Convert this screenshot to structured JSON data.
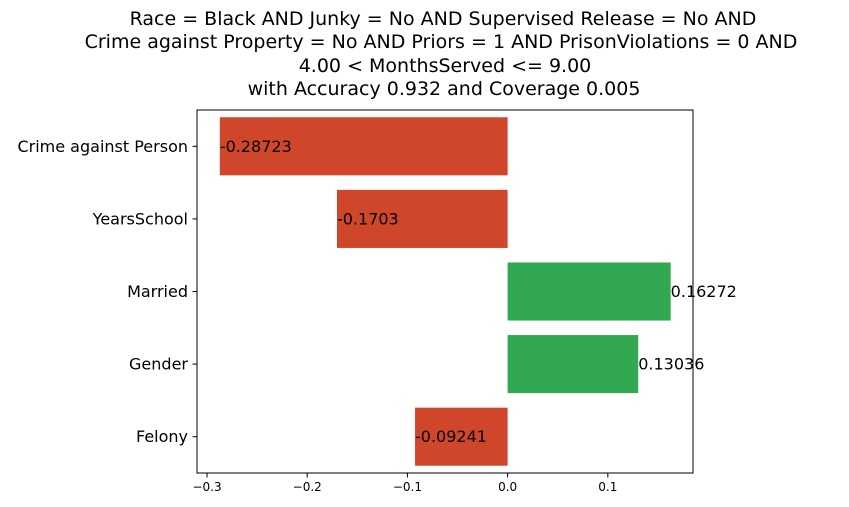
{
  "chart_data": {
    "type": "bar",
    "orientation": "horizontal",
    "title_lines": [
      "Race = Black AND Junky = No AND Supervised Release = No AND",
      "Crime against Property = No AND Priors = 1 AND PrisonViolations = 0 AND",
      "4.00 < MonthsServed <= 9.00",
      "with Accuracy 0.932 and Coverage 0.005"
    ],
    "categories": [
      "Crime against Person",
      "YearsSchool",
      "Married",
      "Gender",
      "Felony"
    ],
    "values": [
      -0.28723,
      -0.1703,
      0.16272,
      0.13036,
      -0.09241
    ],
    "value_labels": [
      "-0.28723",
      "-0.1703",
      "0.16272",
      "0.13036",
      "-0.09241"
    ],
    "xlim": [
      -0.31,
      0.185
    ],
    "xticks": [
      -0.3,
      -0.2,
      -0.1,
      0.0,
      0.1
    ],
    "xtick_labels": [
      "−0.3",
      "−0.2",
      "−0.1",
      "0.0",
      "0.1"
    ],
    "colors": {
      "negative": "#d0462a",
      "positive": "#33a853",
      "axis": "#000000"
    },
    "grid": false,
    "legend": "none"
  }
}
